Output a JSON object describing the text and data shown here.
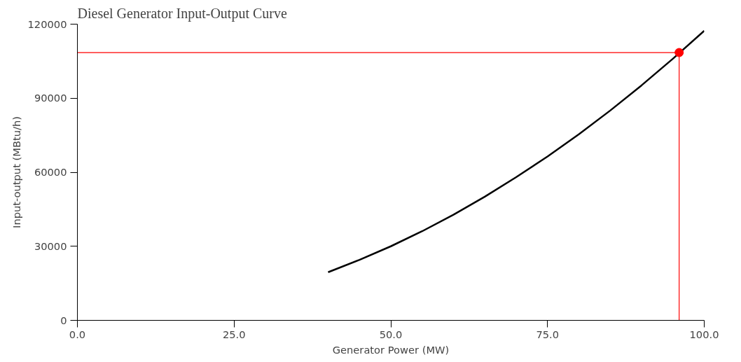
{
  "chart_data": {
    "type": "line",
    "title": "Diesel Generator Input-Output Curve",
    "xlabel": "Generator Power (MW)",
    "ylabel": "Input-output (MBtu/h)",
    "xlim": [
      0,
      100
    ],
    "ylim": [
      0,
      120000
    ],
    "xticks": [
      {
        "value": 0,
        "label": "0.0"
      },
      {
        "value": 25,
        "label": "25.0"
      },
      {
        "value": 50,
        "label": "50.0"
      },
      {
        "value": 75,
        "label": "75.0"
      },
      {
        "value": 100,
        "label": "100.0"
      }
    ],
    "yticks": [
      0,
      30000,
      60000,
      90000,
      120000
    ],
    "grid": false,
    "series": [
      {
        "color": "#000000",
        "x": [
          40,
          45,
          50,
          55,
          60,
          65,
          70,
          75,
          80,
          85,
          90,
          95,
          100
        ],
        "values": [
          19500,
          24500,
          30000,
          36100,
          42800,
          50100,
          58000,
          66400,
          75400,
          85000,
          95200,
          106000,
          117300
        ]
      },
      {
        "type": "line",
        "color": "#ff0000",
        "x": [
          0,
          96,
          96
        ],
        "values": [
          108500,
          108500,
          0
        ]
      },
      {
        "type": "scatter",
        "color": "#ff0000",
        "marker": "circle",
        "x": [
          96
        ],
        "values": [
          108500
        ]
      }
    ]
  }
}
